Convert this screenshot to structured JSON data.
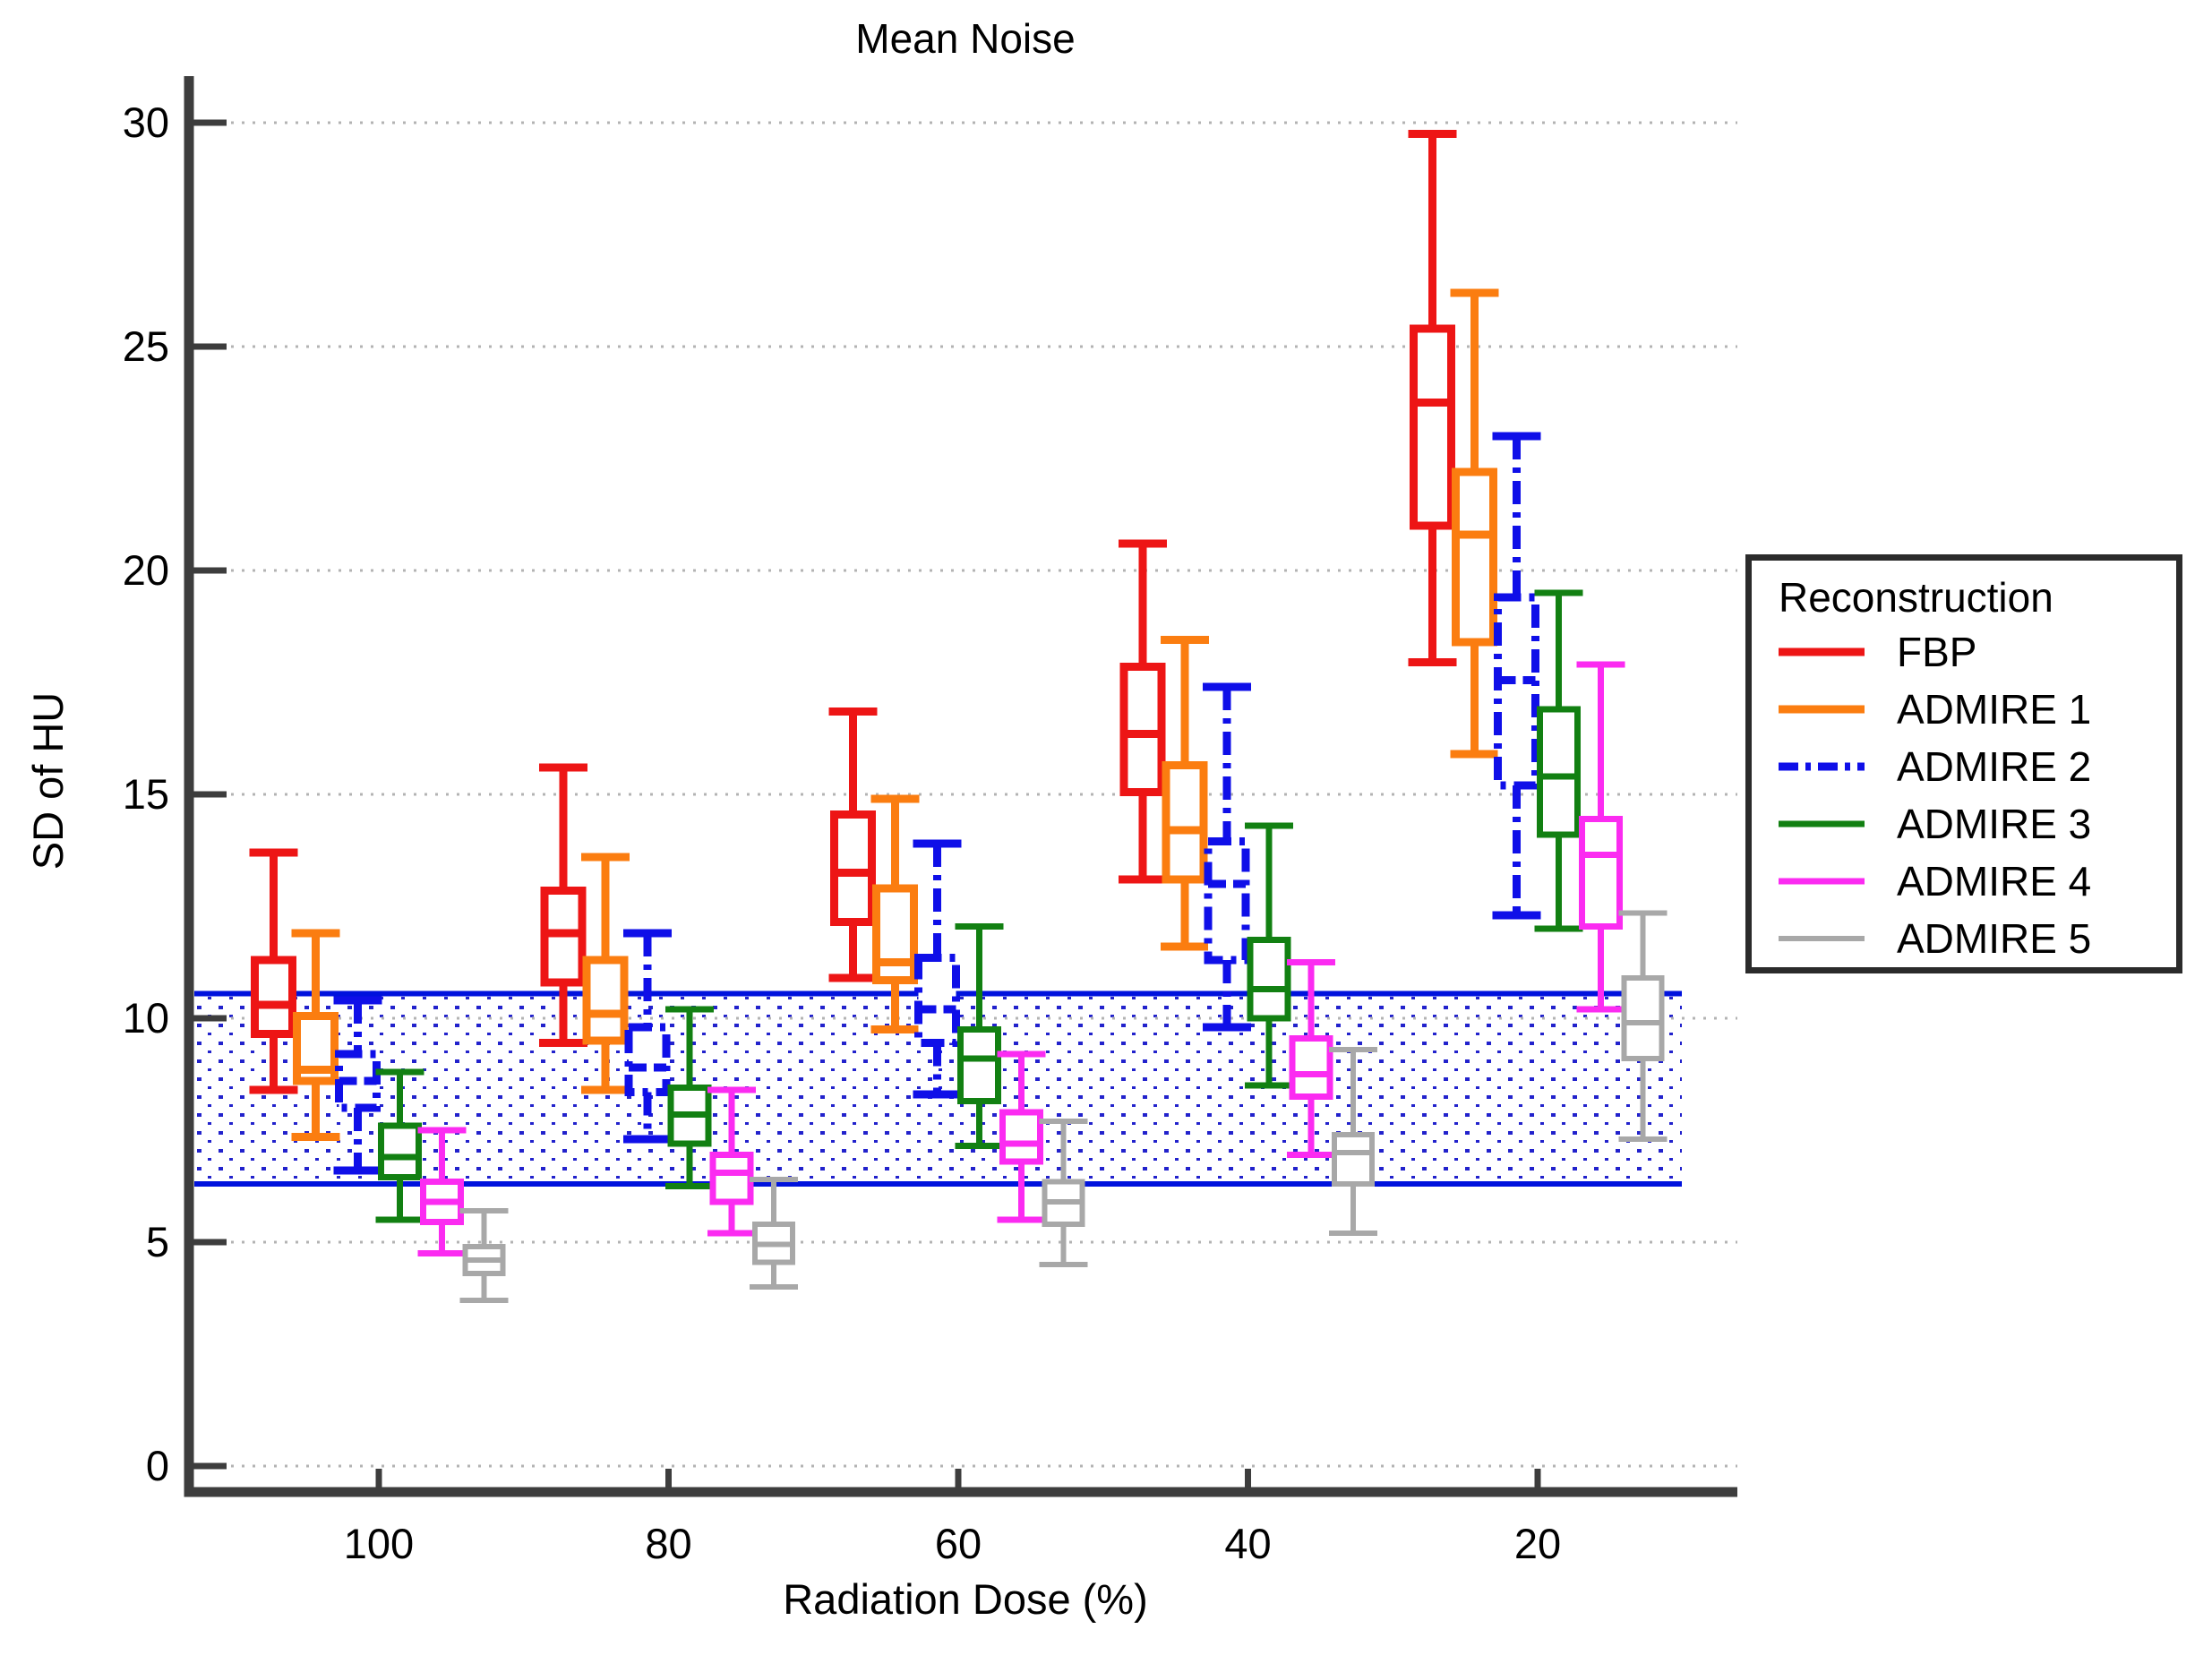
{
  "title": "Mean Noise",
  "axis": {
    "x_label": "Radiation Dose (%)",
    "y_label": "SD of HU",
    "axis_color": "#3d3d3d",
    "grid_color": "#b3b3b3",
    "tick_label_color": "#000000"
  },
  "legend": {
    "title": "Reconstruction"
  },
  "chart_data": {
    "type": "boxplot",
    "title": "Mean Noise",
    "xlabel": "Radiation Dose (%)",
    "ylabel": "SD of HU",
    "categories": [
      "100",
      "80",
      "60",
      "40",
      "20"
    ],
    "y_ticks": [
      0,
      5,
      10,
      15,
      20,
      25,
      30
    ],
    "ylim": [
      0,
      31
    ],
    "grid": "horizontal-dotted",
    "legend_position": "right",
    "reference_band": {
      "low": 6.3,
      "high": 10.55,
      "line_color": "#0012dd",
      "dot_color": "#2222cc",
      "description": "blue dotted reference band with solid blue upper and lower limit lines"
    },
    "series": [
      {
        "name": "FBP",
        "color": "#ed1515",
        "line_style": "solid",
        "line_width": 9,
        "boxes": [
          {
            "low": 8.4,
            "q1": 9.65,
            "median": 10.3,
            "q3": 11.3,
            "high": 13.7
          },
          {
            "low": 9.45,
            "q1": 10.8,
            "median": 11.9,
            "q3": 12.85,
            "high": 15.6
          },
          {
            "low": 10.9,
            "q1": 12.15,
            "median": 13.25,
            "q3": 14.55,
            "high": 16.85
          },
          {
            "low": 13.1,
            "q1": 15.05,
            "median": 16.35,
            "q3": 17.85,
            "high": 20.6
          },
          {
            "low": 17.95,
            "q1": 21.0,
            "median": 23.75,
            "q3": 25.4,
            "high": 29.75
          }
        ]
      },
      {
        "name": "ADMIRE 1",
        "color": "#fb7d10",
        "line_style": "solid",
        "line_width": 9,
        "boxes": [
          {
            "low": 7.35,
            "q1": 8.6,
            "median": 8.85,
            "q3": 10.05,
            "high": 11.9
          },
          {
            "low": 8.4,
            "q1": 9.5,
            "median": 10.1,
            "q3": 11.3,
            "high": 13.6
          },
          {
            "low": 9.75,
            "q1": 10.85,
            "median": 11.25,
            "q3": 12.9,
            "high": 14.9
          },
          {
            "low": 11.6,
            "q1": 13.1,
            "median": 14.2,
            "q3": 15.65,
            "high": 18.45
          },
          {
            "low": 15.9,
            "q1": 18.4,
            "median": 20.8,
            "q3": 22.2,
            "high": 26.2
          }
        ]
      },
      {
        "name": "ADMIRE 2",
        "color": "#0f0fe8",
        "line_style": "dash-dot",
        "line_width": 9,
        "boxes": [
          {
            "low": 6.6,
            "q1": 8.0,
            "median": 8.6,
            "q3": 9.2,
            "high": 10.4
          },
          {
            "low": 7.3,
            "q1": 8.35,
            "median": 8.9,
            "q3": 9.8,
            "high": 11.9
          },
          {
            "low": 8.3,
            "q1": 9.45,
            "median": 10.2,
            "q3": 11.35,
            "high": 13.9
          },
          {
            "low": 9.8,
            "q1": 11.3,
            "median": 13.0,
            "q3": 13.95,
            "high": 17.4
          },
          {
            "low": 12.3,
            "q1": 15.2,
            "median": 17.55,
            "q3": 19.4,
            "high": 23.0
          }
        ]
      },
      {
        "name": "ADMIRE 3",
        "color": "#128012",
        "line_style": "solid",
        "line_width": 7,
        "boxes": [
          {
            "low": 5.5,
            "q1": 6.45,
            "median": 6.9,
            "q3": 7.6,
            "high": 8.8
          },
          {
            "low": 6.25,
            "q1": 7.2,
            "median": 7.85,
            "q3": 8.45,
            "high": 10.2
          },
          {
            "low": 7.15,
            "q1": 8.15,
            "median": 9.1,
            "q3": 9.75,
            "high": 12.05
          },
          {
            "low": 8.5,
            "q1": 10.0,
            "median": 10.65,
            "q3": 11.75,
            "high": 14.3
          },
          {
            "low": 12.0,
            "q1": 14.1,
            "median": 15.4,
            "q3": 16.9,
            "high": 19.5
          }
        ]
      },
      {
        "name": "ADMIRE 4",
        "color": "#fb2bf1",
        "line_style": "solid",
        "line_width": 7,
        "boxes": [
          {
            "low": 4.75,
            "q1": 5.45,
            "median": 5.9,
            "q3": 6.35,
            "high": 7.5
          },
          {
            "low": 5.2,
            "q1": 5.9,
            "median": 6.55,
            "q3": 6.95,
            "high": 8.4
          },
          {
            "low": 5.5,
            "q1": 6.8,
            "median": 7.2,
            "q3": 7.9,
            "high": 9.2
          },
          {
            "low": 6.95,
            "q1": 8.25,
            "median": 8.75,
            "q3": 9.55,
            "high": 11.25
          },
          {
            "low": 10.2,
            "q1": 12.05,
            "median": 13.65,
            "q3": 14.45,
            "high": 17.9
          }
        ]
      },
      {
        "name": "ADMIRE 5",
        "color": "#a8a8a8",
        "line_style": "solid",
        "line_width": 6,
        "boxes": [
          {
            "low": 3.7,
            "q1": 4.3,
            "median": 4.6,
            "q3": 4.9,
            "high": 5.7
          },
          {
            "low": 4.0,
            "q1": 4.55,
            "median": 4.95,
            "q3": 5.4,
            "high": 6.4
          },
          {
            "low": 4.5,
            "q1": 5.4,
            "median": 5.9,
            "q3": 6.35,
            "high": 7.7
          },
          {
            "low": 5.2,
            "q1": 6.3,
            "median": 7.0,
            "q3": 7.4,
            "high": 9.3
          },
          {
            "low": 7.3,
            "q1": 9.1,
            "median": 9.9,
            "q3": 10.9,
            "high": 12.35
          }
        ]
      }
    ]
  }
}
